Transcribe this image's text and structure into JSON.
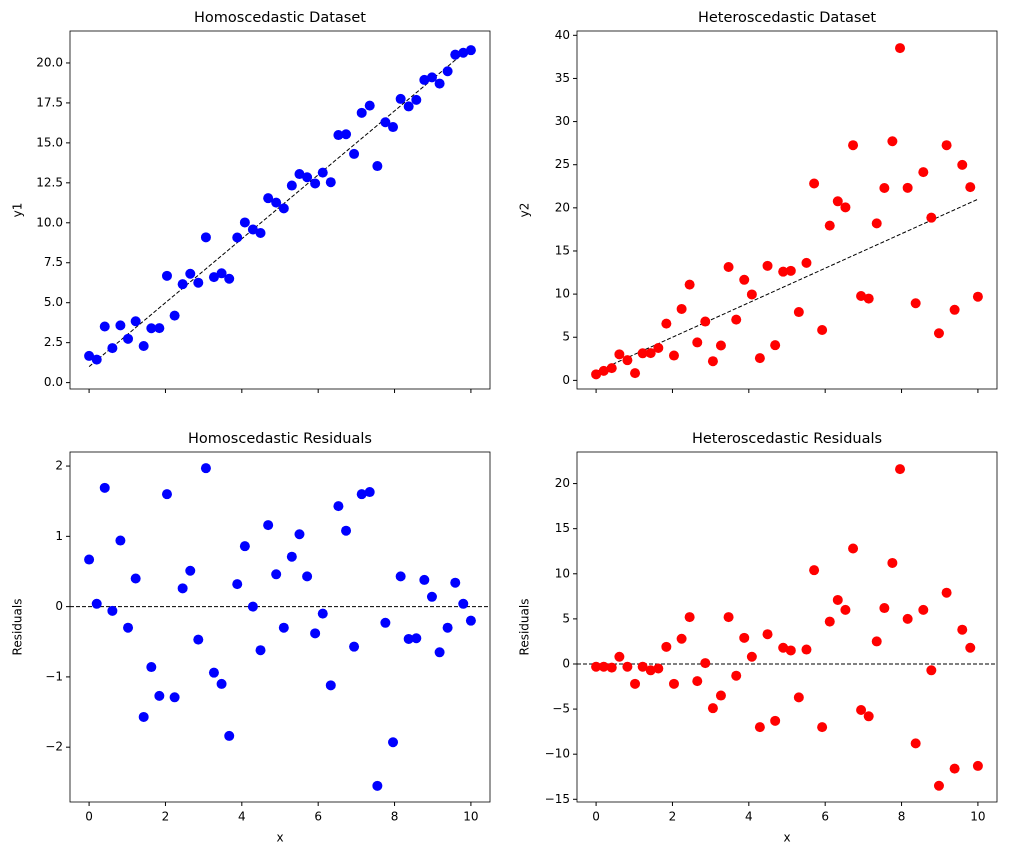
{
  "chart_data": [
    {
      "type": "scatter",
      "title": "Homoscedastic Dataset",
      "ylabel": "y1",
      "color": "#0000ff",
      "x": [
        0,
        0.2,
        0.41,
        0.61,
        0.82,
        1.02,
        1.22,
        1.43,
        1.63,
        1.84,
        2.04,
        2.24,
        2.45,
        2.65,
        2.86,
        3.06,
        3.27,
        3.47,
        3.67,
        3.88,
        4.08,
        4.29,
        4.49,
        4.69,
        4.9,
        5.1,
        5.31,
        5.51,
        5.71,
        5.92,
        6.12,
        6.33,
        6.53,
        6.73,
        6.94,
        7.14,
        7.35,
        7.55,
        7.76,
        7.96,
        8.16,
        8.37,
        8.57,
        8.78,
        8.98,
        9.18,
        9.39,
        9.59,
        9.8,
        10
      ],
      "values": [
        1.67,
        1.44,
        3.51,
        2.16,
        3.58,
        2.74,
        3.84,
        2.29,
        3.4,
        3.41,
        6.68,
        4.19,
        6.16,
        6.81,
        6.25,
        9.09,
        6.6,
        6.84,
        6.5,
        9.08,
        10.02,
        9.58,
        9.36,
        11.54,
        11.26,
        10.9,
        12.33,
        13.05,
        12.85,
        12.46,
        13.14,
        12.54,
        15.49,
        15.54,
        14.31,
        16.88,
        17.33,
        13.55,
        16.29,
        15.99,
        17.75,
        17.28,
        17.69,
        18.94,
        19.1,
        18.71,
        19.48,
        20.52,
        20.64,
        20.8
      ],
      "reference_line": {
        "x": [
          0,
          10
        ],
        "values": [
          1,
          21
        ]
      },
      "xlim": [
        -0.5,
        10.5
      ],
      "xticks": [
        0,
        2,
        4,
        6,
        8,
        10
      ],
      "show_xticklabels": false,
      "ylim": [
        -0.4,
        22
      ],
      "yticks": [
        {
          "value": 0,
          "label": "0.0"
        },
        2.5,
        {
          "value": 5,
          "label": "5.0"
        },
        7.5,
        {
          "value": 10,
          "label": "10.0"
        },
        12.5,
        {
          "value": 15,
          "label": "15.0"
        },
        17.5,
        {
          "value": 20,
          "label": "20.0"
        }
      ]
    },
    {
      "type": "scatter",
      "title": "Heteroscedastic Dataset",
      "ylabel": "y2",
      "color": "#ff0000",
      "x": [
        0,
        0.2,
        0.41,
        0.61,
        0.82,
        1.02,
        1.22,
        1.43,
        1.63,
        1.84,
        2.04,
        2.24,
        2.45,
        2.65,
        2.86,
        3.06,
        3.27,
        3.47,
        3.67,
        3.88,
        4.08,
        4.29,
        4.49,
        4.69,
        4.9,
        5.1,
        5.31,
        5.51,
        5.71,
        5.92,
        6.12,
        6.33,
        6.53,
        6.73,
        6.94,
        7.14,
        7.35,
        7.55,
        7.76,
        7.96,
        8.16,
        8.37,
        8.57,
        8.78,
        8.98,
        9.18,
        9.39,
        9.59,
        9.8,
        10
      ],
      "values": [
        0.7,
        1.1,
        1.42,
        3.02,
        2.34,
        0.84,
        3.14,
        3.16,
        3.76,
        6.58,
        2.88,
        8.28,
        11.1,
        4.4,
        6.82,
        2.22,
        4.04,
        13.14,
        7.04,
        11.66,
        9.96,
        2.58,
        13.28,
        4.08,
        12.6,
        12.7,
        7.92,
        13.62,
        22.82,
        5.84,
        17.94,
        20.76,
        20.06,
        27.26,
        9.78,
        9.48,
        18.2,
        22.3,
        27.72,
        38.52,
        22.32,
        8.94,
        24.14,
        18.86,
        5.46,
        27.26,
        8.18,
        24.98,
        22.4,
        9.7
      ],
      "reference_line": {
        "x": [
          0,
          10
        ],
        "values": [
          1,
          21
        ]
      },
      "xlim": [
        -0.5,
        10.5
      ],
      "xticks": [
        0,
        2,
        4,
        6,
        8,
        10
      ],
      "show_xticklabels": false,
      "ylim": [
        -1,
        40.5
      ],
      "yticks": [
        0,
        5,
        10,
        15,
        20,
        25,
        30,
        35,
        40
      ]
    },
    {
      "type": "scatter",
      "title": "Homoscedastic Residuals",
      "xlabel": "x",
      "ylabel": "Residuals",
      "color": "#0000ff",
      "x": [
        0,
        0.2,
        0.41,
        0.61,
        0.82,
        1.02,
        1.22,
        1.43,
        1.63,
        1.84,
        2.04,
        2.24,
        2.45,
        2.65,
        2.86,
        3.06,
        3.27,
        3.47,
        3.67,
        3.88,
        4.08,
        4.29,
        4.49,
        4.69,
        4.9,
        5.1,
        5.31,
        5.51,
        5.71,
        5.92,
        6.12,
        6.33,
        6.53,
        6.73,
        6.94,
        7.14,
        7.35,
        7.55,
        7.76,
        7.96,
        8.16,
        8.37,
        8.57,
        8.78,
        8.98,
        9.18,
        9.39,
        9.59,
        9.8,
        10
      ],
      "values": [
        0.67,
        0.04,
        1.69,
        -0.06,
        0.94,
        -0.3,
        0.4,
        -1.57,
        -0.86,
        -1.27,
        1.6,
        -1.29,
        0.26,
        0.51,
        -0.47,
        1.97,
        -0.94,
        -1.1,
        -1.84,
        0.32,
        0.86,
        0,
        -0.62,
        1.16,
        0.46,
        -0.3,
        0.71,
        1.03,
        0.43,
        -0.38,
        -0.1,
        -1.12,
        1.43,
        1.08,
        -0.57,
        1.6,
        1.63,
        -2.55,
        -0.23,
        -1.93,
        0.43,
        -0.46,
        -0.45,
        0.38,
        0.14,
        -0.65,
        -0.3,
        0.34,
        0.04,
        -0.2
      ],
      "hline": 0,
      "xlim": [
        -0.5,
        10.5
      ],
      "xticks": [
        0,
        2,
        4,
        6,
        8,
        10
      ],
      "show_xticklabels": true,
      "ylim": [
        -2.78,
        2.2
      ],
      "yticks": [
        {
          "value": -2,
          "label": "−2"
        },
        {
          "value": -1,
          "label": "−1"
        },
        0,
        1,
        2
      ]
    },
    {
      "type": "scatter",
      "title": "Heteroscedastic Residuals",
      "xlabel": "x",
      "ylabel": "Residuals",
      "color": "#ff0000",
      "x": [
        0,
        0.2,
        0.41,
        0.61,
        0.82,
        1.02,
        1.22,
        1.43,
        1.63,
        1.84,
        2.04,
        2.24,
        2.45,
        2.65,
        2.86,
        3.06,
        3.27,
        3.47,
        3.67,
        3.88,
        4.08,
        4.29,
        4.49,
        4.69,
        4.9,
        5.1,
        5.31,
        5.51,
        5.71,
        5.92,
        6.12,
        6.33,
        6.53,
        6.73,
        6.94,
        7.14,
        7.35,
        7.55,
        7.76,
        7.96,
        8.16,
        8.37,
        8.57,
        8.78,
        8.98,
        9.18,
        9.39,
        9.59,
        9.8,
        10
      ],
      "values": [
        -0.3,
        -0.3,
        -0.4,
        0.8,
        -0.3,
        -2.2,
        -0.3,
        -0.7,
        -0.5,
        1.9,
        -2.2,
        2.8,
        5.2,
        -1.9,
        0.1,
        -4.9,
        -3.5,
        5.2,
        -1.3,
        2.9,
        0.8,
        -7,
        3.3,
        -6.3,
        1.8,
        1.5,
        -3.7,
        1.6,
        10.4,
        -7,
        4.7,
        7.1,
        6,
        12.8,
        -5.1,
        -5.8,
        2.5,
        6.2,
        11.2,
        21.6,
        5,
        -8.8,
        6,
        -0.7,
        -13.5,
        7.9,
        -11.6,
        3.8,
        1.8,
        -11.3
      ],
      "hline": 0,
      "xlim": [
        -0.5,
        10.5
      ],
      "xticks": [
        0,
        2,
        4,
        6,
        8,
        10
      ],
      "show_xticklabels": true,
      "ylim": [
        -15.3,
        23.5
      ],
      "yticks": [
        {
          "value": -15,
          "label": "−15"
        },
        {
          "value": -10,
          "label": "−10"
        },
        {
          "value": -5,
          "label": "−5"
        },
        0,
        5,
        10,
        15,
        20
      ]
    }
  ]
}
